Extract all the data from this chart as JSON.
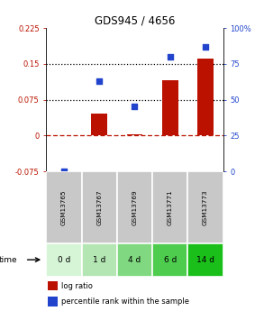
{
  "title": "GDS945 / 4656",
  "categories": [
    "GSM13765",
    "GSM13767",
    "GSM13769",
    "GSM13771",
    "GSM13773"
  ],
  "time_labels": [
    "0 d",
    "1 d",
    "4 d",
    "6 d",
    "14 d"
  ],
  "log_ratio": [
    0.0,
    0.045,
    0.003,
    0.115,
    0.16
  ],
  "percentile_rank": [
    0,
    63,
    45,
    80,
    87
  ],
  "bar_color": "#bb1100",
  "dot_color": "#2244cc",
  "ylim_left": [
    -0.075,
    0.225
  ],
  "ylim_right": [
    0,
    100
  ],
  "yticks_left": [
    -0.075,
    0,
    0.075,
    0.15,
    0.225
  ],
  "ytick_labels_left": [
    "-0.075",
    "0",
    "0.075",
    "0.15",
    "0.225"
  ],
  "yticks_right": [
    0,
    25,
    50,
    75,
    100
  ],
  "ytick_labels_right": [
    "0",
    "25",
    "50",
    "75",
    "100%"
  ],
  "hlines": [
    0.075,
    0.15
  ],
  "zero_line": 0.0,
  "time_cell_colors": [
    "#d6f5d6",
    "#b3e6b3",
    "#80d980",
    "#4dcc4d",
    "#1abf1a"
  ],
  "gsm_bg": "#c8c8c8",
  "legend_red": "log ratio",
  "legend_blue": "percentile rank within the sample"
}
